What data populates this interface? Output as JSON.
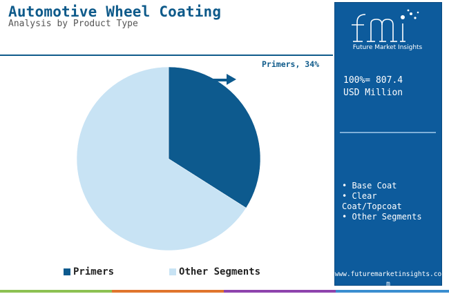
{
  "header": {
    "title": "Automotive Wheel Coating",
    "subtitle": "Analysis by Product Type"
  },
  "side_panel": {
    "logo_letters": "fmi",
    "logo_tagline": "Future Market Insights",
    "total_line1": "100%= 807.4",
    "total_line2": "USD Million",
    "segments": [
      "• Base Coat",
      "• Clear Coat/Topcoat",
      "• Other Segments"
    ],
    "website": "www.futuremarketinsights.com"
  },
  "callout": {
    "label": "Primers, 34%"
  },
  "chart_data": {
    "type": "pie",
    "title": "Automotive Wheel Coating",
    "subtitle": "Analysis by Product Type",
    "total": "807.4 USD Million",
    "slices": [
      {
        "label": "Primers",
        "value": 34,
        "color": "#0d5a8e"
      },
      {
        "label": "Other Segments",
        "value": 66,
        "color": "#c8e3f4"
      }
    ],
    "legend_position": "bottom"
  },
  "legend": [
    "Primers",
    "Other Segments"
  ],
  "colors": {
    "brand_blue": "#0d5b9c",
    "title_blue": "#0e5a8a",
    "bar_green": "#8cc152",
    "bar_orange": "#e0752d",
    "bar_purple": "#8e44ad",
    "bar_blue": "#3b8ed0"
  }
}
